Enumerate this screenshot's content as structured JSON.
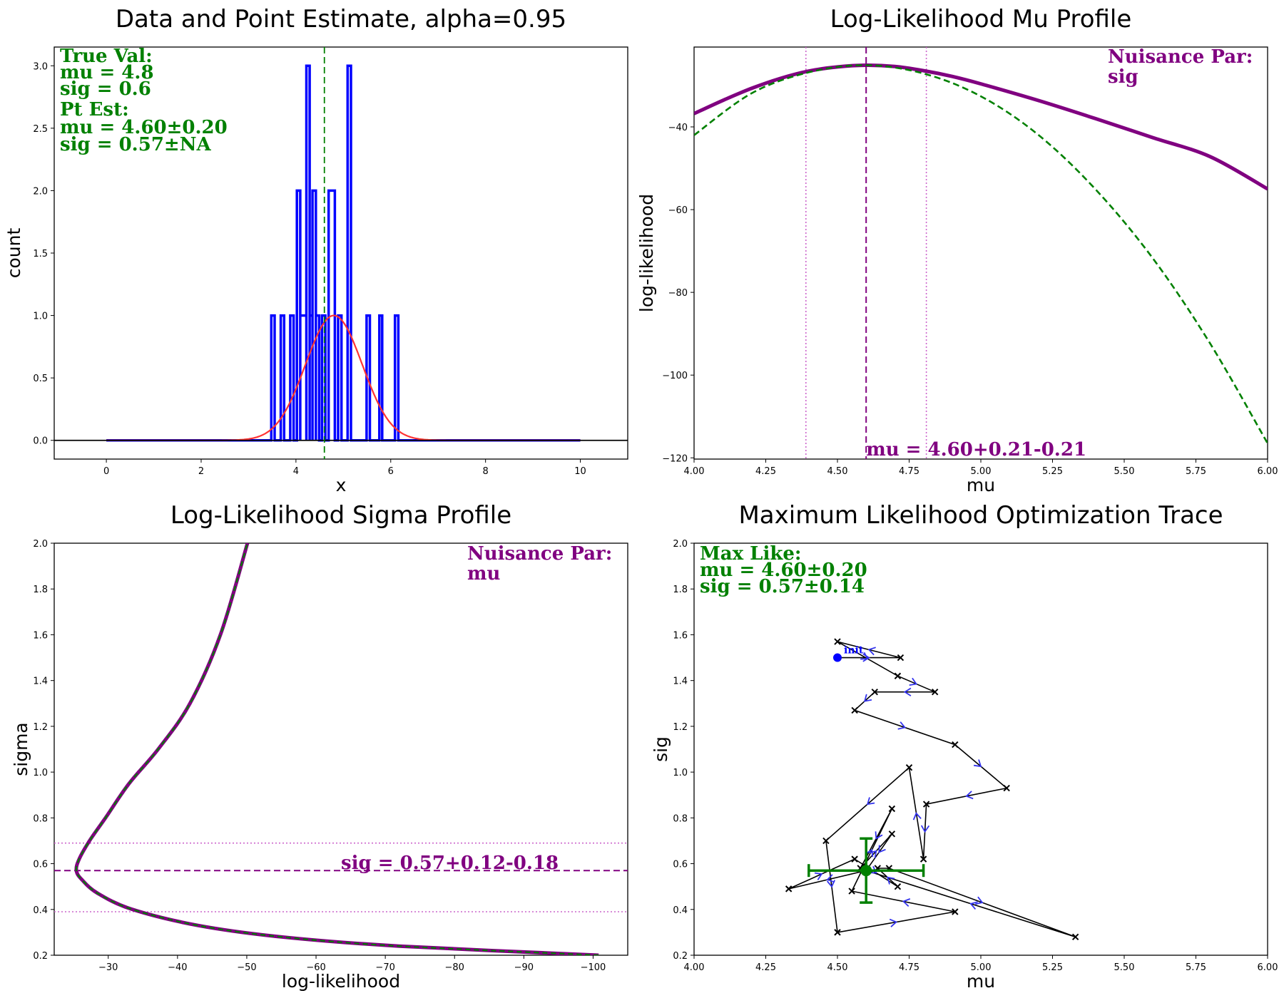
{
  "chart_data": [
    {
      "type": "histogram",
      "title": "Data and Point Estimate, alpha=0.95",
      "xlabel": "x",
      "ylabel": "count",
      "xlim": [
        -1.1,
        11.0
      ],
      "ylim": [
        -0.15,
        3.15
      ],
      "xticks": [
        "0",
        "2",
        "4",
        "6",
        "8",
        "10"
      ],
      "yticks": [
        "0.0",
        "0.5",
        "1.0",
        "1.5",
        "2.0",
        "2.5",
        "3.0"
      ],
      "histogram": {
        "color": "#0000ff",
        "bins": [
          {
            "x0": 3.48,
            "x1": 3.55,
            "count": 1
          },
          {
            "x0": 3.68,
            "x1": 3.75,
            "count": 1
          },
          {
            "x0": 3.88,
            "x1": 3.95,
            "count": 1
          },
          {
            "x0": 4.02,
            "x1": 4.09,
            "count": 2
          },
          {
            "x0": 4.09,
            "x1": 4.22,
            "count": 1
          },
          {
            "x0": 4.22,
            "x1": 4.29,
            "count": 3
          },
          {
            "x0": 4.29,
            "x1": 4.35,
            "count": 1
          },
          {
            "x0": 4.35,
            "x1": 4.42,
            "count": 2
          },
          {
            "x0": 4.42,
            "x1": 4.49,
            "count": 1
          },
          {
            "x0": 4.55,
            "x1": 4.62,
            "count": 1
          },
          {
            "x0": 4.69,
            "x1": 4.82,
            "count": 2
          },
          {
            "x0": 4.89,
            "x1": 4.96,
            "count": 1
          },
          {
            "x0": 5.09,
            "x1": 5.16,
            "count": 3
          },
          {
            "x0": 5.49,
            "x1": 5.56,
            "count": 1
          },
          {
            "x0": 5.76,
            "x1": 5.82,
            "count": 1
          },
          {
            "x0": 6.09,
            "x1": 6.16,
            "count": 1
          }
        ],
        "range": [
          0,
          10
        ]
      },
      "fit_curve": {
        "type": "gaussian",
        "mu": 4.8,
        "sig": 0.6,
        "peak": 1.0,
        "color": "#ff3333",
        "x_range": [
          0,
          10
        ]
      },
      "hlines": [
        {
          "y": 0,
          "color": "#000000"
        }
      ],
      "vlines": [
        {
          "x": 4.6,
          "color": "#008000",
          "style": "dashed"
        }
      ],
      "annotations": [
        "True Val:",
        "    mu = 4.8",
        "    sig = 0.6",
        "Pt Est:",
        "    mu = 4.60±0.20",
        "    sig = 0.57±NA"
      ],
      "annotation_color": "#008000"
    },
    {
      "type": "line",
      "title": "Log-Likelihood Mu Profile",
      "xlabel": "mu",
      "ylabel": "log-likelihood",
      "xlim": [
        4.0,
        6.0
      ],
      "ylim": [
        -120.3,
        -20.7
      ],
      "xticks": [
        "4.00",
        "4.25",
        "4.50",
        "4.75",
        "5.00",
        "5.25",
        "5.50",
        "5.75",
        "6.00"
      ],
      "yticks": [
        "−40",
        "−60",
        "−80",
        "−100",
        "−120"
      ],
      "series": [
        {
          "color": "#800080",
          "style": "solid",
          "points": [
            [
              4.0,
              -36.8
            ],
            [
              4.1,
              -33.6
            ],
            [
              4.2,
              -30.7
            ],
            [
              4.3,
              -28.3
            ],
            [
              4.4,
              -26.5
            ],
            [
              4.5,
              -25.5
            ],
            [
              4.6,
              -25.1
            ],
            [
              4.7,
              -25.4
            ],
            [
              4.8,
              -26.4
            ],
            [
              4.9,
              -27.8
            ],
            [
              5.0,
              -29.6
            ],
            [
              5.2,
              -33.6
            ],
            [
              5.4,
              -38.0
            ],
            [
              5.6,
              -42.6
            ],
            [
              5.8,
              -47.2
            ],
            [
              6.0,
              -55.0
            ]
          ]
        },
        {
          "color": "#008000",
          "style": "dashed",
          "points": [
            [
              4.0,
              -42.0
            ],
            [
              4.2,
              -31.9
            ],
            [
              4.4,
              -26.8
            ],
            [
              4.6,
              -25.1
            ],
            [
              4.8,
              -27.1
            ],
            [
              5.0,
              -32.6
            ],
            [
              5.2,
              -41.9
            ],
            [
              5.4,
              -55.1
            ],
            [
              5.6,
              -71.8
            ],
            [
              5.8,
              -92.4
            ],
            [
              6.0,
              -116.5
            ]
          ]
        }
      ],
      "vlines": [
        {
          "x": 4.6,
          "color": "#800080",
          "style": "dashed"
        },
        {
          "x": 4.39,
          "color": "#cc66cc",
          "style": "dotted"
        },
        {
          "x": 4.81,
          "color": "#cc66cc",
          "style": "dotted"
        }
      ],
      "annotations": [
        "Nuisance Par:",
        "  sig"
      ],
      "annotation_color": "#800080",
      "result_label": "mu = 4.60+0.21-0.21"
    },
    {
      "type": "line",
      "title": "Log-Likelihood Sigma Profile",
      "xlabel": "log-likelihood",
      "ylabel": "sigma",
      "xlim": [
        -22.2,
        -105.0
      ],
      "ylim": [
        0.2,
        2.0
      ],
      "xticks": [
        "−30",
        "−40",
        "−50",
        "−60",
        "−70",
        "−80",
        "−90",
        "−100"
      ],
      "yticks": [
        "0.2",
        "0.4",
        "0.6",
        "0.8",
        "1.0",
        "1.2",
        "1.4",
        "1.6",
        "1.8",
        "2.0"
      ],
      "series": [
        {
          "color": "#800080",
          "style": "solid",
          "overlay_color": "#008000",
          "overlay_style": "dashed",
          "points": [
            [
              -100.8,
              0.2
            ],
            [
              -72.0,
              0.24
            ],
            [
              -55.0,
              0.28
            ],
            [
              -43.0,
              0.33
            ],
            [
              -33.5,
              0.4
            ],
            [
              -28.5,
              0.47
            ],
            [
              -26.2,
              0.53
            ],
            [
              -25.4,
              0.57
            ],
            [
              -25.8,
              0.62
            ],
            [
              -27.3,
              0.7
            ],
            [
              -29.6,
              0.8
            ],
            [
              -33.0,
              0.95
            ],
            [
              -37.2,
              1.1
            ],
            [
              -41.8,
              1.3
            ],
            [
              -46.2,
              1.6
            ],
            [
              -50.1,
              2.0
            ]
          ]
        }
      ],
      "hlines": [
        {
          "y": 0.57,
          "color": "#800080",
          "style": "dashed"
        },
        {
          "y": 0.39,
          "color": "#cc66cc",
          "style": "dotted"
        },
        {
          "y": 0.69,
          "color": "#cc66cc",
          "style": "dotted"
        }
      ],
      "annotations": [
        "Nuisance Par:",
        "  mu"
      ],
      "annotation_color": "#800080",
      "result_label": "sig = 0.57+0.12-0.18"
    },
    {
      "type": "scatter",
      "title": "Maximum Likelihood Optimization Trace",
      "xlabel": "mu",
      "ylabel": "sig",
      "xlim": [
        4.0,
        6.0
      ],
      "ylim": [
        0.2,
        2.0
      ],
      "xticks": [
        "4.00",
        "4.25",
        "4.50",
        "4.75",
        "5.00",
        "5.25",
        "5.50",
        "5.75",
        "6.00"
      ],
      "yticks": [
        "0.2",
        "0.4",
        "0.6",
        "0.8",
        "1.0",
        "1.2",
        "1.4",
        "1.6",
        "1.8",
        "2.0"
      ],
      "trace": [
        [
          4.5,
          1.5
        ],
        [
          4.72,
          1.5
        ],
        [
          4.5,
          1.57
        ],
        [
          4.71,
          1.42
        ],
        [
          4.84,
          1.35
        ],
        [
          4.63,
          1.35
        ],
        [
          4.56,
          1.27
        ],
        [
          4.91,
          1.12
        ],
        [
          5.09,
          0.93
        ],
        [
          4.81,
          0.86
        ],
        [
          4.8,
          0.62
        ],
        [
          4.75,
          1.02
        ],
        [
          4.46,
          0.7
        ],
        [
          4.5,
          0.3
        ],
        [
          4.91,
          0.39
        ],
        [
          4.55,
          0.48
        ],
        [
          4.69,
          0.84
        ],
        [
          4.58,
          0.58
        ],
        [
          4.69,
          0.73
        ],
        [
          4.6,
          0.57
        ],
        [
          4.33,
          0.49
        ],
        [
          4.56,
          0.62
        ],
        [
          4.71,
          0.5
        ],
        [
          4.64,
          0.58
        ],
        [
          4.68,
          0.58
        ],
        [
          5.33,
          0.28
        ],
        [
          4.6,
          0.57
        ]
      ],
      "init_point": {
        "mu": 4.5,
        "sig": 1.5,
        "label": "init",
        "color": "#0000ff"
      },
      "estimate": {
        "mu": 4.6,
        "sig": 0.57,
        "mu_err": 0.2,
        "sig_err": 0.14,
        "color": "#008000"
      },
      "trace_color": "#000000",
      "arrow_color": "#3333ee",
      "annotations": [
        "Max Like:",
        "    mu = 4.60±0.20",
        "    sig = 0.57±0.14"
      ],
      "annotation_color": "#008000"
    }
  ]
}
